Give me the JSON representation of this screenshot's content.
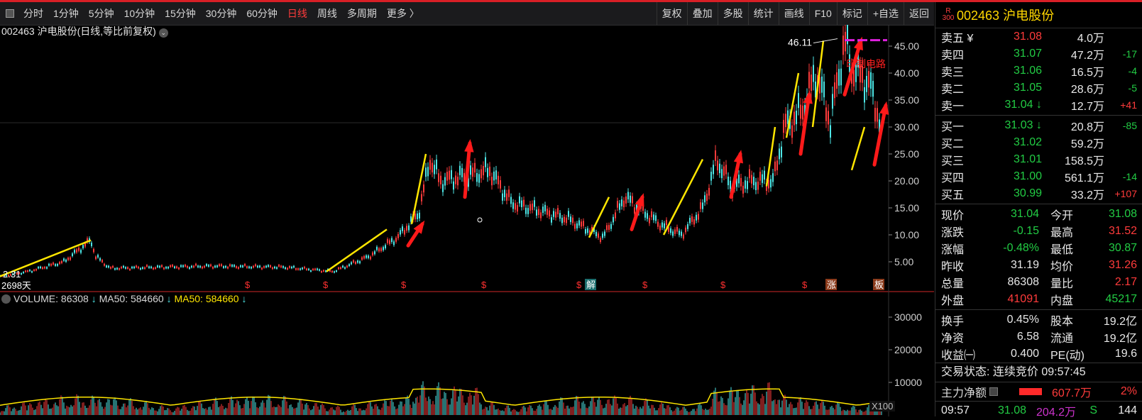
{
  "toolbar": {
    "periods": [
      "分时",
      "1分钟",
      "5分钟",
      "10分钟",
      "15分钟",
      "30分钟",
      "60分钟",
      "日线",
      "周线",
      "多周期",
      "更多 〉"
    ],
    "active_period": "日线",
    "right_buttons": [
      "复权",
      "叠加",
      "多股",
      "统计",
      "画线",
      "F10",
      "标记",
      "+自选",
      "返回"
    ]
  },
  "chart": {
    "title": "002463 沪电股份(日线,等比前复权)",
    "y_ticks": [
      "45.00",
      "40.00",
      "35.00",
      "30.00",
      "25.00",
      "20.00",
      "15.00",
      "10.00",
      "5.00"
    ],
    "max_label": "46.11",
    "min_label": "2.31",
    "small_label": "2698天",
    "annotation": "印制电路",
    "event_markers": [
      "$",
      "$",
      "$",
      "$",
      "$",
      "解",
      "$",
      "$",
      "$",
      "涨",
      "板"
    ]
  },
  "volume": {
    "header_volume": "VOLUME: 86308",
    "header_ma": "MA50: 584660",
    "header_ma_yellow": "MA50: 584660",
    "y_ticks": [
      "30000",
      "20000",
      "10000"
    ],
    "multiplier": "X100"
  },
  "colors": {
    "up": "#ff3b3b",
    "down": "#4ee6e6",
    "ma": "#ffe600",
    "arrow": "#ff1a1a"
  },
  "panel": {
    "badge_top": "R",
    "badge_bottom": "300",
    "code_name": "002463 沪电股份",
    "asks": [
      {
        "label": "卖五 ¥",
        "price": "31.08",
        "vol": "4.0万",
        "chg": "",
        "pc": "r",
        "cc": ""
      },
      {
        "label": "卖四",
        "price": "31.07",
        "vol": "47.2万",
        "chg": "-17",
        "pc": "g",
        "cc": "g"
      },
      {
        "label": "卖三",
        "price": "31.06",
        "vol": "16.5万",
        "chg": "-4",
        "pc": "g",
        "cc": "g"
      },
      {
        "label": "卖二",
        "price": "31.05",
        "vol": "28.6万",
        "chg": "-5",
        "pc": "g",
        "cc": "g"
      },
      {
        "label": "卖一",
        "price": "31.04 ↓",
        "vol": "12.7万",
        "chg": "+41",
        "pc": "g",
        "cc": "r"
      }
    ],
    "bids": [
      {
        "label": "买一",
        "price": "31.03 ↓",
        "vol": "20.8万",
        "chg": "-85",
        "pc": "g",
        "cc": "g"
      },
      {
        "label": "买二",
        "price": "31.02",
        "vol": "59.2万",
        "chg": "",
        "pc": "g",
        "cc": ""
      },
      {
        "label": "买三",
        "price": "31.01",
        "vol": "158.5万",
        "chg": "",
        "pc": "g",
        "cc": ""
      },
      {
        "label": "买四",
        "price": "31.00",
        "vol": "561.1万",
        "chg": "-14",
        "pc": "g",
        "cc": "g"
      },
      {
        "label": "买五",
        "price": "30.99",
        "vol": "33.2万",
        "chg": "+107",
        "pc": "g",
        "cc": "r"
      }
    ],
    "quotes": [
      {
        "k": "现价",
        "v": "31.04",
        "vc": "g",
        "k2": "今开",
        "v2": "31.08",
        "v2c": "g"
      },
      {
        "k": "涨跌",
        "v": "-0.15",
        "vc": "g",
        "k2": "最高",
        "v2": "31.52",
        "v2c": "r"
      },
      {
        "k": "涨幅",
        "v": "-0.48%",
        "vc": "g",
        "k2": "最低",
        "v2": "30.87",
        "v2c": "g"
      },
      {
        "k": "昨收",
        "v": "31.19",
        "vc": "w",
        "k2": "均价",
        "v2": "31.26",
        "v2c": "r"
      },
      {
        "k": "总量",
        "v": "86308",
        "vc": "w",
        "k2": "量比",
        "v2": "2.17",
        "v2c": "r"
      },
      {
        "k": "外盘",
        "v": "41091",
        "vc": "r",
        "k2": "内盘",
        "v2": "45217",
        "v2c": "g"
      }
    ],
    "fundamentals": [
      {
        "k": "换手",
        "v": "0.45%",
        "vc": "w",
        "k2": "股本",
        "v2": "19.2亿",
        "v2c": "w"
      },
      {
        "k": "净资",
        "v": "6.58",
        "vc": "w",
        "k2": "流通",
        "v2": "19.2亿",
        "v2c": "w"
      },
      {
        "k": "收益㈠",
        "v": "0.400",
        "vc": "w",
        "k2": "PE(动)",
        "v2": "19.6",
        "v2c": "w"
      }
    ],
    "status": "交易状态: 连续竞价 09:57:45",
    "flow_label": "主力净额",
    "flow_amount": "607.7万",
    "flow_pct": "2%",
    "tick": {
      "time": "09:57",
      "price": "31.08",
      "amount": "204.2万",
      "side": "S",
      "num": "144"
    }
  }
}
